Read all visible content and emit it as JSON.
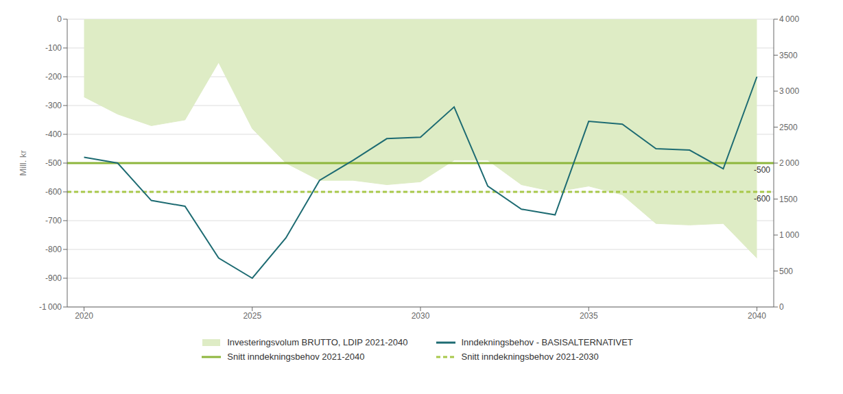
{
  "chart_data": {
    "type": "line",
    "x": [
      2020,
      2021,
      2022,
      2023,
      2024,
      2025,
      2026,
      2027,
      2028,
      2029,
      2030,
      2031,
      2032,
      2033,
      2034,
      2035,
      2036,
      2037,
      2038,
      2039,
      2040
    ],
    "series": [
      {
        "name": "Investeringsvolum BRUTTO, LDIP 2021-2040",
        "type": "area",
        "color": "#deecc5",
        "values": [
          -270,
          -330,
          -370,
          -350,
          -150,
          -380,
          -500,
          -560,
          -560,
          -575,
          -565,
          -490,
          -490,
          -575,
          -600,
          -580,
          -610,
          -710,
          -715,
          -710,
          -830
        ]
      },
      {
        "name": "Inndekningsbehov - BASISALTERNATIVET",
        "type": "line",
        "color": "#1d6b72",
        "values": [
          -480,
          -500,
          -630,
          -650,
          -830,
          -900,
          -760,
          -560,
          -490,
          -415,
          -410,
          -305,
          -580,
          -660,
          -680,
          -355,
          -365,
          -450,
          -455,
          -520,
          -200
        ]
      }
    ],
    "hlines": [
      {
        "name": "Snitt inndekningsbehov 2021-2040",
        "value": -500,
        "label": "-500",
        "color": "#8db63c",
        "line_style": "solid"
      },
      {
        "name": "Snitt inndekningsbehov 2021-2030",
        "value": -600,
        "label": "-600",
        "color": "#a8c84a",
        "line_style": "dashed"
      }
    ],
    "ylabel": "Mill. kr",
    "xlim": [
      2019.5,
      2040.5
    ],
    "xticks": [
      2020,
      2025,
      2030,
      2035,
      2040
    ],
    "ylim": [
      -1000,
      0
    ],
    "yticks": [
      {
        "value": -1000,
        "label": "-1 000"
      },
      -900,
      -800,
      -700,
      -600,
      -500,
      -400,
      -300,
      -200,
      -100,
      0
    ],
    "y2lim": [
      0,
      4000
    ],
    "y2ticks": [
      0,
      500,
      {
        "value": 1000,
        "label": "1 000"
      },
      1500,
      {
        "value": 2000,
        "label": "2 000"
      },
      2500,
      {
        "value": 3000,
        "label": "3 000"
      },
      3500,
      {
        "value": 4000,
        "label": "4 000"
      }
    ],
    "grid": true,
    "legend": "bottom"
  }
}
